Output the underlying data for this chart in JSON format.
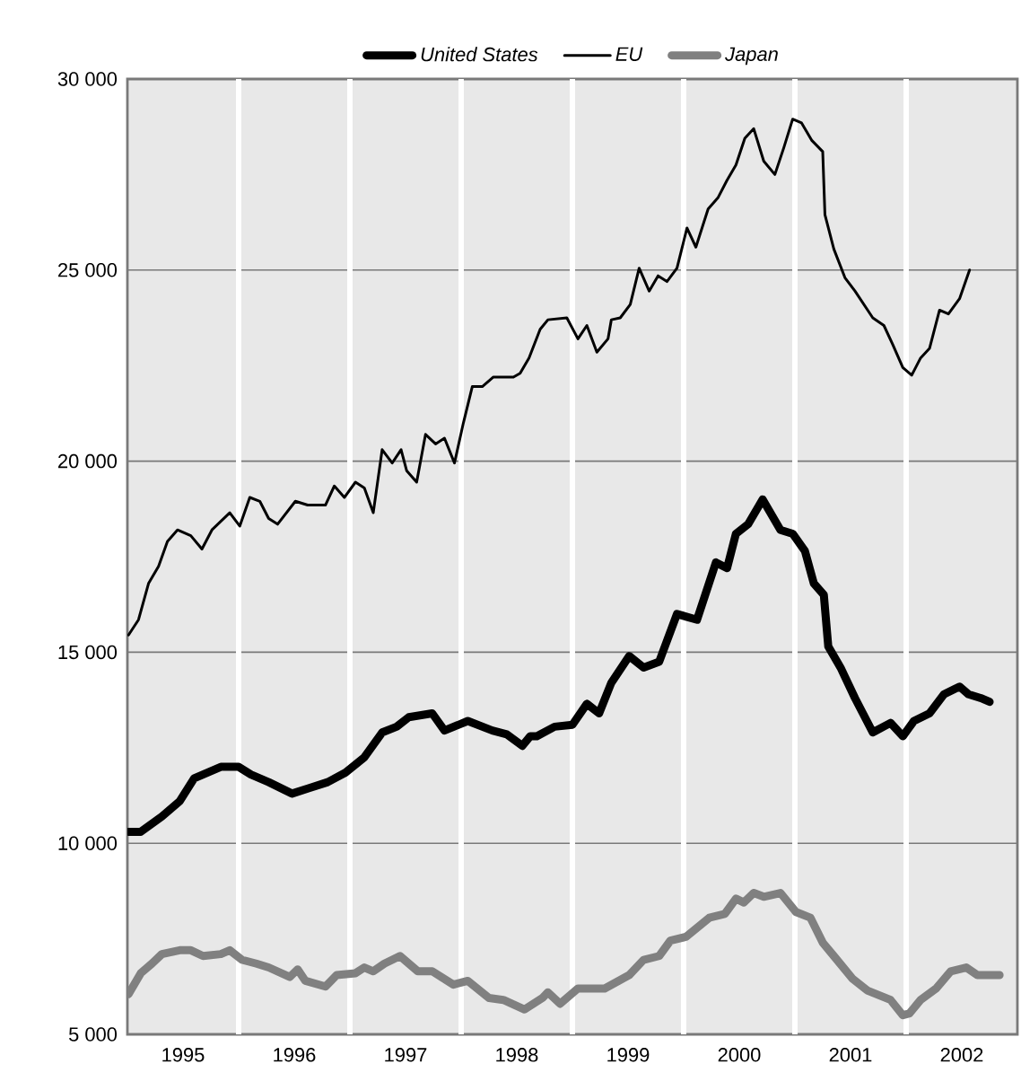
{
  "chart_data": {
    "type": "line",
    "series": [
      {
        "name": "United States",
        "color": "#000000",
        "x": [
          1995.01,
          1995.12,
          1995.31,
          1995.47,
          1995.6,
          1995.68,
          1995.84,
          1996.0,
          1996.11,
          1996.27,
          1996.48,
          1996.64,
          1996.8,
          1996.96,
          1997.13,
          1997.29,
          1997.42,
          1997.53,
          1997.74,
          1997.85,
          1998.06,
          1998.28,
          1998.41,
          1998.55,
          1998.62,
          1998.68,
          1998.84,
          1999.0,
          1999.13,
          1999.24,
          1999.35,
          1999.51,
          1999.64,
          1999.78,
          1999.94,
          2000.12,
          2000.29,
          2000.39,
          2000.47,
          2000.58,
          2000.71,
          2000.87,
          2000.98,
          2001.09,
          2001.17,
          2001.26,
          2001.3,
          2001.41,
          2001.54,
          2001.7,
          2001.86,
          2001.97,
          2002.07,
          2002.21,
          2002.34,
          2002.48,
          2002.56,
          2002.67,
          2002.75
        ],
        "values": [
          10300,
          10300,
          10700,
          11100,
          11700,
          11800,
          12000,
          12000,
          11800,
          11600,
          11300,
          11450,
          11600,
          11850,
          12250,
          12900,
          13050,
          13300,
          13400,
          12950,
          13200,
          12950,
          12850,
          12550,
          12800,
          12800,
          13050,
          13100,
          13650,
          13400,
          14200,
          14900,
          14600,
          14750,
          16000,
          15850,
          17350,
          17200,
          18100,
          18350,
          19000,
          18200,
          18100,
          17650,
          16800,
          16500,
          15150,
          14600,
          13800,
          12900,
          13150,
          12800,
          13200,
          13400,
          13900,
          14100,
          13900,
          13800,
          13700
        ]
      },
      {
        "name": "EU",
        "color": "#000000",
        "x": [
          1995.01,
          1995.1,
          1995.19,
          1995.28,
          1995.36,
          1995.45,
          1995.57,
          1995.67,
          1995.76,
          1995.92,
          1996.01,
          1996.1,
          1996.19,
          1996.27,
          1996.35,
          1996.51,
          1996.62,
          1996.78,
          1996.86,
          1996.95,
          1997.05,
          1997.13,
          1997.21,
          1997.29,
          1997.38,
          1997.46,
          1997.51,
          1997.6,
          1997.68,
          1997.77,
          1997.85,
          1997.94,
          1998.02,
          1998.1,
          1998.19,
          1998.29,
          1998.47,
          1998.53,
          1998.61,
          1998.71,
          1998.78,
          1998.95,
          1999.05,
          1999.13,
          1999.22,
          1999.32,
          1999.35,
          1999.43,
          1999.52,
          1999.6,
          1999.69,
          1999.77,
          1999.85,
          1999.94,
          2000.03,
          2000.11,
          2000.22,
          2000.31,
          2000.39,
          2000.47,
          2000.55,
          2000.63,
          2000.72,
          2000.82,
          2000.9,
          2000.98,
          2001.06,
          2001.15,
          2001.25,
          2001.27,
          2001.35,
          2001.45,
          2001.54,
          2001.7,
          2001.8,
          2001.88,
          2001.97,
          2002.05,
          2002.13,
          2002.21,
          2002.3,
          2002.38,
          2002.48,
          2002.57
        ],
        "values": [
          15450,
          15850,
          16800,
          17250,
          17900,
          18200,
          18050,
          17700,
          18200,
          18650,
          18300,
          19050,
          18950,
          18500,
          18350,
          18950,
          18850,
          18850,
          19350,
          19050,
          19450,
          19300,
          18650,
          20300,
          19950,
          20300,
          19750,
          19450,
          20700,
          20450,
          20600,
          19950,
          21000,
          21950,
          21950,
          22200,
          22200,
          22300,
          22700,
          23450,
          23700,
          23750,
          23200,
          23550,
          22850,
          23200,
          23700,
          23750,
          24100,
          25050,
          24450,
          24850,
          24700,
          25050,
          26100,
          25600,
          26600,
          26900,
          27350,
          27750,
          28450,
          28700,
          27850,
          27500,
          28200,
          28950,
          28850,
          28400,
          28100,
          26450,
          25550,
          24800,
          24450,
          23750,
          23550,
          23050,
          22450,
          22250,
          22700,
          22950,
          23950,
          23850,
          24250,
          25000
        ]
      },
      {
        "name": "Japan",
        "color": "#808080",
        "x": [
          1995.01,
          1995.12,
          1995.22,
          1995.31,
          1995.47,
          1995.57,
          1995.68,
          1995.84,
          1995.92,
          1996.03,
          1996.16,
          1996.27,
          1996.46,
          1996.53,
          1996.6,
          1996.78,
          1996.88,
          1997.05,
          1997.13,
          1997.21,
          1997.31,
          1997.45,
          1997.61,
          1997.74,
          1997.93,
          1998.06,
          1998.25,
          1998.38,
          1998.57,
          1998.73,
          1998.78,
          1998.89,
          1999.05,
          1999.29,
          1999.51,
          1999.64,
          1999.78,
          1999.88,
          2000.02,
          2000.23,
          2000.37,
          2000.47,
          2000.54,
          2000.63,
          2000.72,
          2000.87,
          2001.01,
          2001.14,
          2001.25,
          2001.35,
          2001.52,
          2001.65,
          2001.86,
          2001.97,
          2002.03,
          2002.13,
          2002.27,
          2002.4,
          2002.54,
          2002.64,
          2002.84
        ],
        "values": [
          6050,
          6600,
          6850,
          7100,
          7200,
          7200,
          7050,
          7100,
          7200,
          6950,
          6850,
          6750,
          6500,
          6700,
          6400,
          6250,
          6550,
          6600,
          6750,
          6650,
          6850,
          7050,
          6650,
          6650,
          6300,
          6400,
          5950,
          5900,
          5650,
          5950,
          6100,
          5800,
          6200,
          6200,
          6550,
          6950,
          7050,
          7450,
          7550,
          8050,
          8150,
          8550,
          8450,
          8700,
          8600,
          8700,
          8200,
          8050,
          7400,
          7050,
          6450,
          6150,
          5900,
          5500,
          5550,
          5900,
          6200,
          6650,
          6750,
          6550,
          6550
        ]
      }
    ],
    "xlim": [
      1995,
      2003
    ],
    "xticks": [
      {
        "value": 1995.5,
        "label": "1995"
      },
      {
        "value": 1996,
        "label": null
      },
      {
        "value": 1996.5,
        "label": "1996"
      },
      {
        "value": 1997,
        "label": null
      },
      {
        "value": 1997.5,
        "label": "1997"
      },
      {
        "value": 1998,
        "label": null
      },
      {
        "value": 1998.5,
        "label": "1998"
      },
      {
        "value": 1999,
        "label": null
      },
      {
        "value": 1999.5,
        "label": "1999"
      },
      {
        "value": 2000,
        "label": null
      },
      {
        "value": 2000.5,
        "label": "2000"
      },
      {
        "value": 2001,
        "label": null
      },
      {
        "value": 2001.5,
        "label": "2001"
      },
      {
        "value": 2002,
        "label": null
      },
      {
        "value": 2002.5,
        "label": "2002"
      }
    ],
    "ylim": [
      5000,
      30000
    ],
    "yticks": [
      {
        "value": 5000,
        "label": "5 000"
      },
      {
        "value": 10000,
        "label": "10 000"
      },
      {
        "value": 15000,
        "label": "15 000"
      },
      {
        "value": 20000,
        "label": "20 000"
      },
      {
        "value": 25000,
        "label": "25 000"
      },
      {
        "value": 30000,
        "label": "30 000"
      }
    ],
    "grid": true,
    "legend": "top",
    "marker": "none"
  }
}
